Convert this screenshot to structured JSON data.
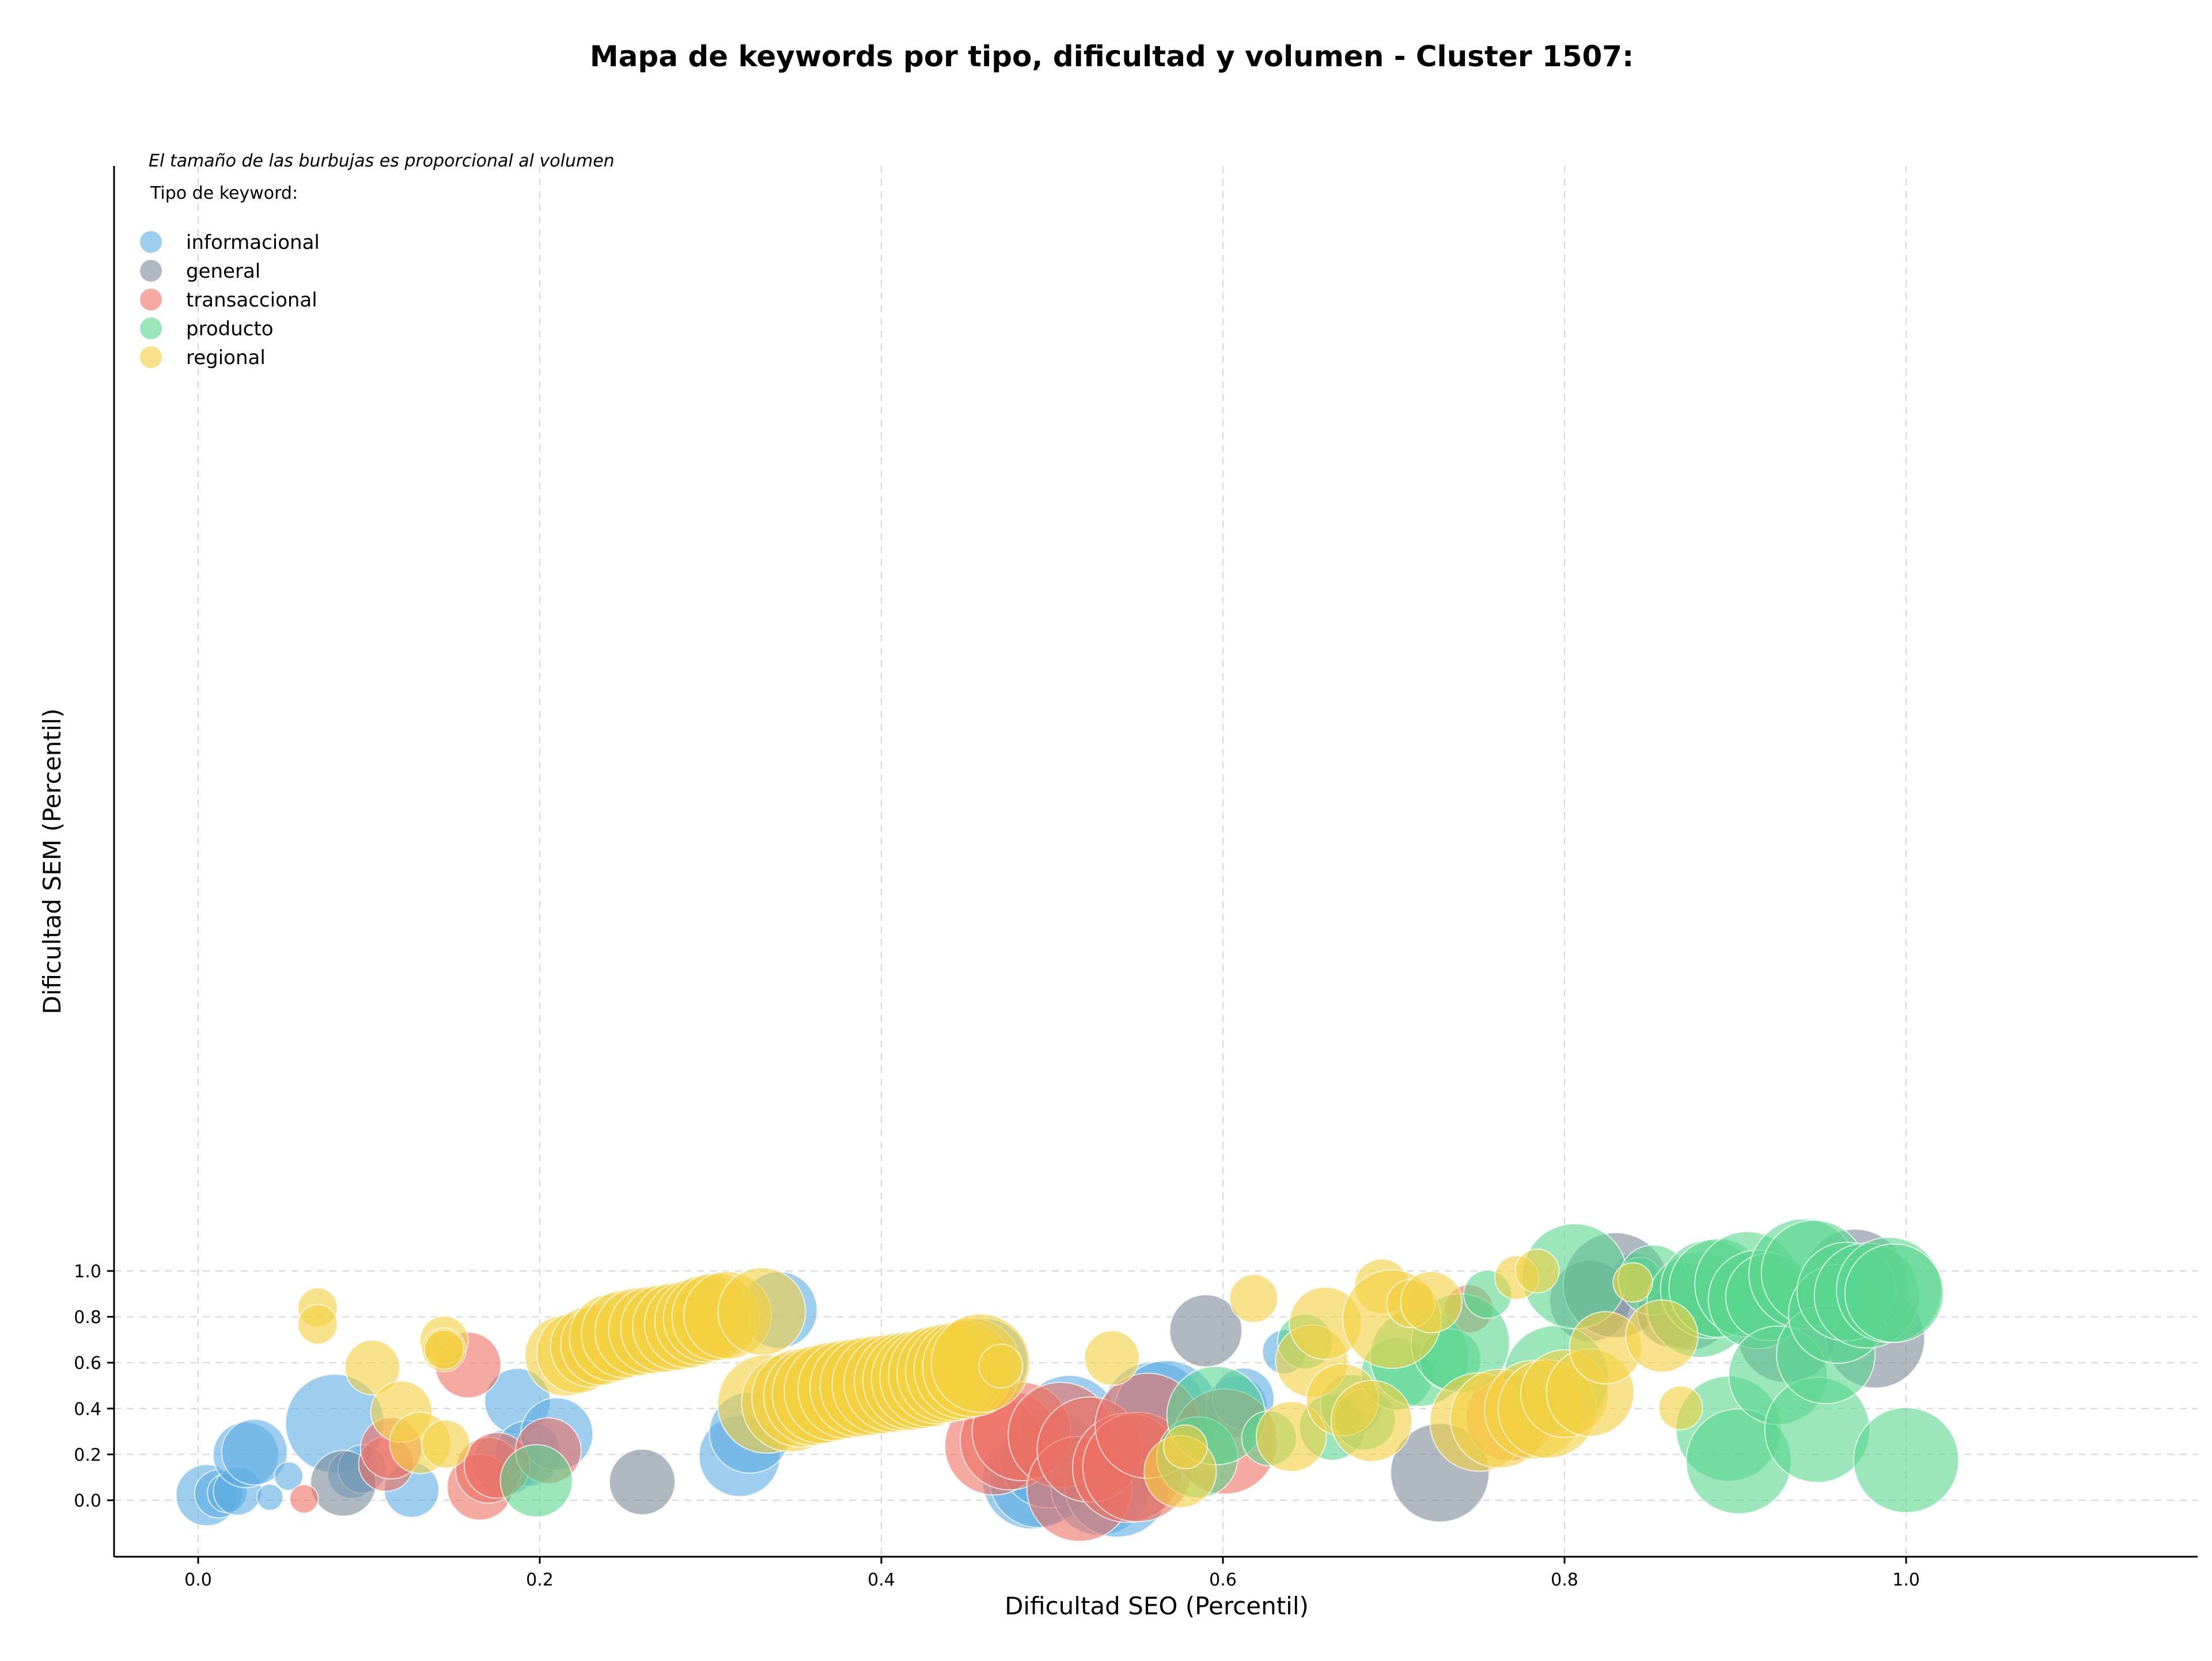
{
  "chart_data": {
    "type": "scatter",
    "title": "Mapa de keywords por tipo, dificultad y volumen - Cluster 1507:",
    "xlabel": "Dificultad SEO (Percentil)",
    "ylabel": "Dificultad SEM (Percentil)",
    "note": "El tamaño de las burbujas es proporcional al volumen",
    "legend_title": "Tipo de keyword:",
    "legend_position": "top-left",
    "grid": true,
    "xlim": [
      -0.045,
      1.05
    ],
    "ylim": [
      -0.043,
      1.05
    ],
    "xticks": [
      "0.0",
      "0.2",
      "0.4",
      "0.6",
      "0.8",
      "1.0"
    ],
    "yticks": [
      "0.0",
      "0.2",
      "0.4",
      "0.6",
      "0.8",
      "1.0"
    ],
    "point_order": [
      "informacional",
      "general",
      "transaccional",
      "producto",
      "regional"
    ],
    "series": [
      {
        "name": "informacional",
        "color": "#5dade2",
        "points": [
          [
            0.005,
            0.022,
            2.8
          ],
          [
            0.012,
            0.028,
            2.2
          ],
          [
            0.017,
            0.032,
            1.8
          ],
          [
            0.023,
            0.04,
            2.2
          ],
          [
            0.028,
            0.198,
            3.0
          ],
          [
            0.033,
            0.21,
            3.0
          ],
          [
            0.042,
            0.013,
            1.2
          ],
          [
            0.053,
            0.105,
            1.3
          ],
          [
            0.08,
            0.335,
            4.5
          ],
          [
            0.09,
            0.113,
            2.2
          ],
          [
            0.096,
            0.136,
            2.2
          ],
          [
            0.125,
            0.045,
            2.5
          ],
          [
            0.18,
            0.164,
            3.0
          ],
          [
            0.187,
            0.432,
            3.0
          ],
          [
            0.193,
            0.204,
            3.0
          ],
          [
            0.21,
            0.289,
            3.3
          ],
          [
            0.317,
            0.193,
            3.7
          ],
          [
            0.323,
            0.295,
            3.7
          ],
          [
            0.34,
            0.83,
            3.5
          ],
          [
            0.46,
            0.602,
            4.0
          ],
          [
            0.488,
            0.09,
            4.5
          ],
          [
            0.492,
            0.096,
            4.5
          ],
          [
            0.498,
            0.181,
            4.5
          ],
          [
            0.51,
            0.33,
            4.5
          ],
          [
            0.528,
            0.062,
            4.5
          ],
          [
            0.538,
            0.068,
            4.8
          ],
          [
            0.56,
            0.375,
            4.8
          ],
          [
            0.567,
            0.38,
            4.8
          ],
          [
            0.608,
            0.408,
            2.8
          ],
          [
            0.612,
            0.443,
            2.8
          ],
          [
            0.636,
            0.647,
            2.0
          ],
          [
            0.841,
            0.982,
            2.0
          ],
          [
            0.842,
            0.968,
            1.4
          ]
        ]
      },
      {
        "name": "general",
        "color": "#7b8a9a",
        "points": [
          [
            0.085,
            0.074,
            3.0
          ],
          [
            0.26,
            0.08,
            3.0
          ],
          [
            0.59,
            0.739,
            3.3
          ],
          [
            0.727,
            0.12,
            4.5
          ],
          [
            0.815,
            0.869,
            3.7
          ],
          [
            0.83,
            0.938,
            4.8
          ],
          [
            0.863,
            0.819,
            3.2
          ],
          [
            0.873,
            0.846,
            4.0
          ],
          [
            0.93,
            0.728,
            4.5
          ],
          [
            0.97,
            0.953,
            4.8
          ],
          [
            0.982,
            0.704,
            4.5
          ]
        ]
      },
      {
        "name": "transaccional",
        "color": "#ec7063",
        "points": [
          [
            0.062,
            0.006,
            1.3
          ],
          [
            0.11,
            0.158,
            2.5
          ],
          [
            0.113,
            0.227,
            2.8
          ],
          [
            0.158,
            0.59,
            3.0
          ],
          [
            0.165,
            0.057,
            3.0
          ],
          [
            0.17,
            0.131,
            3.0
          ],
          [
            0.175,
            0.152,
            3.0
          ],
          [
            0.205,
            0.216,
            3.0
          ],
          [
            0.37,
            0.482,
            3.2
          ],
          [
            0.466,
            0.238,
            4.5
          ],
          [
            0.475,
            0.26,
            4.5
          ],
          [
            0.482,
            0.3,
            4.5
          ],
          [
            0.505,
            0.285,
            4.8
          ],
          [
            0.516,
            0.05,
            4.8
          ],
          [
            0.522,
            0.221,
            4.8
          ],
          [
            0.544,
            0.142,
            5.0
          ],
          [
            0.55,
            0.145,
            5.0
          ],
          [
            0.556,
            0.325,
            4.8
          ],
          [
            0.601,
            0.256,
            4.8
          ],
          [
            0.744,
            0.835,
            2.2
          ],
          [
            0.768,
            0.363,
            4.0
          ]
        ]
      },
      {
        "name": "producto",
        "color": "#58d68d",
        "points": [
          [
            0.198,
            0.085,
            3.3
          ],
          [
            0.585,
            0.187,
            3.7
          ],
          [
            0.596,
            0.369,
            4.5
          ],
          [
            0.627,
            0.27,
            2.5
          ],
          [
            0.648,
            0.692,
            2.5
          ],
          [
            0.664,
            0.318,
            3.0
          ],
          [
            0.675,
            0.415,
            2.8
          ],
          [
            0.683,
            0.352,
            2.8
          ],
          [
            0.702,
            0.551,
            3.3
          ],
          [
            0.715,
            0.624,
            4.5
          ],
          [
            0.733,
            0.613,
            2.8
          ],
          [
            0.739,
            0.686,
            4.5
          ],
          [
            0.755,
            0.898,
            2.2
          ],
          [
            0.795,
            0.533,
            4.8
          ],
          [
            0.806,
            0.977,
            4.8
          ],
          [
            0.844,
            0.964,
            2.0
          ],
          [
            0.852,
            0.96,
            3.2
          ],
          [
            0.879,
            0.852,
            4.8
          ],
          [
            0.885,
            0.92,
            4.5
          ],
          [
            0.89,
            0.925,
            4.5
          ],
          [
            0.896,
            0.312,
            4.8
          ],
          [
            0.902,
            0.17,
            4.8
          ],
          [
            0.907,
            0.942,
            4.8
          ],
          [
            0.913,
            0.876,
            4.5
          ],
          [
            0.92,
            0.887,
            4.0
          ],
          [
            0.925,
            0.545,
            4.5
          ],
          [
            0.94,
            0.988,
            5.0
          ],
          [
            0.946,
            0.992,
            4.8
          ],
          [
            0.948,
            0.307,
            4.8
          ],
          [
            0.953,
            0.636,
            4.5
          ],
          [
            0.96,
            0.812,
            4.5
          ],
          [
            0.965,
            0.91,
            4.5
          ],
          [
            0.977,
            0.893,
            4.8
          ],
          [
            0.99,
            0.917,
            4.8
          ],
          [
            0.993,
            0.903,
            4.5
          ],
          [
            1.0,
            0.175,
            4.8
          ]
        ]
      },
      {
        "name": "regional",
        "color": "#f4d03f",
        "points": [
          [
            0.07,
            0.84,
            1.8
          ],
          [
            0.07,
            0.767,
            1.8
          ],
          [
            0.102,
            0.579,
            2.5
          ],
          [
            0.119,
            0.386,
            2.8
          ],
          [
            0.13,
            0.25,
            2.8
          ],
          [
            0.144,
            0.698,
            2.2
          ],
          [
            0.144,
            0.656,
            2.0
          ],
          [
            0.144,
            0.657,
            1.8
          ],
          [
            0.145,
            0.245,
            2.2
          ],
          [
            0.215,
            0.631,
            3.7
          ],
          [
            0.222,
            0.643,
            3.7
          ],
          [
            0.23,
            0.67,
            3.7
          ],
          [
            0.236,
            0.679,
            3.7
          ],
          [
            0.243,
            0.71,
            4.0
          ],
          [
            0.25,
            0.725,
            4.0
          ],
          [
            0.258,
            0.735,
            4.0
          ],
          [
            0.266,
            0.743,
            4.0
          ],
          [
            0.273,
            0.75,
            4.0
          ],
          [
            0.28,
            0.758,
            4.0
          ],
          [
            0.287,
            0.768,
            4.0
          ],
          [
            0.293,
            0.781,
            4.0
          ],
          [
            0.298,
            0.793,
            4.0
          ],
          [
            0.303,
            0.8,
            4.0
          ],
          [
            0.31,
            0.807,
            4.0
          ],
          [
            0.33,
            0.823,
            4.0
          ],
          [
            0.333,
            0.42,
            4.5
          ],
          [
            0.347,
            0.426,
            4.5
          ],
          [
            0.353,
            0.447,
            4.5
          ],
          [
            0.36,
            0.455,
            4.5
          ],
          [
            0.365,
            0.463,
            4.5
          ],
          [
            0.372,
            0.475,
            4.5
          ],
          [
            0.38,
            0.485,
            4.5
          ],
          [
            0.387,
            0.492,
            4.5
          ],
          [
            0.393,
            0.498,
            4.5
          ],
          [
            0.4,
            0.505,
            4.5
          ],
          [
            0.407,
            0.512,
            4.5
          ],
          [
            0.413,
            0.518,
            4.5
          ],
          [
            0.418,
            0.522,
            4.5
          ],
          [
            0.423,
            0.528,
            4.5
          ],
          [
            0.428,
            0.535,
            4.5
          ],
          [
            0.433,
            0.548,
            4.5
          ],
          [
            0.438,
            0.555,
            4.5
          ],
          [
            0.443,
            0.562,
            4.5
          ],
          [
            0.448,
            0.57,
            4.5
          ],
          [
            0.453,
            0.58,
            4.5
          ],
          [
            0.458,
            0.598,
            4.5
          ],
          [
            0.47,
            0.585,
            2.0
          ],
          [
            0.535,
            0.62,
            2.5
          ],
          [
            0.575,
            0.125,
            3.3
          ],
          [
            0.578,
            0.233,
            2.0
          ],
          [
            0.618,
            0.88,
            2.2
          ],
          [
            0.64,
            0.278,
            3.2
          ],
          [
            0.652,
            0.607,
            3.3
          ],
          [
            0.66,
            0.772,
            3.3
          ],
          [
            0.67,
            0.438,
            3.3
          ],
          [
            0.687,
            0.346,
            3.7
          ],
          [
            0.693,
            0.933,
            2.5
          ],
          [
            0.699,
            0.79,
            4.5
          ],
          [
            0.71,
            0.858,
            2.2
          ],
          [
            0.722,
            0.864,
            2.8
          ],
          [
            0.75,
            0.341,
            4.5
          ],
          [
            0.762,
            0.356,
            4.5
          ],
          [
            0.772,
            0.971,
            2.0
          ],
          [
            0.782,
            0.395,
            4.5
          ],
          [
            0.784,
            1.0,
            2.0
          ],
          [
            0.79,
            0.398,
            4.5
          ],
          [
            0.8,
            0.465,
            4.0
          ],
          [
            0.815,
            0.47,
            4.0
          ],
          [
            0.824,
            0.665,
            3.3
          ],
          [
            0.84,
            0.95,
            1.8
          ],
          [
            0.857,
            0.716,
            3.3
          ],
          [
            0.868,
            0.403,
            2.0
          ]
        ]
      }
    ]
  }
}
